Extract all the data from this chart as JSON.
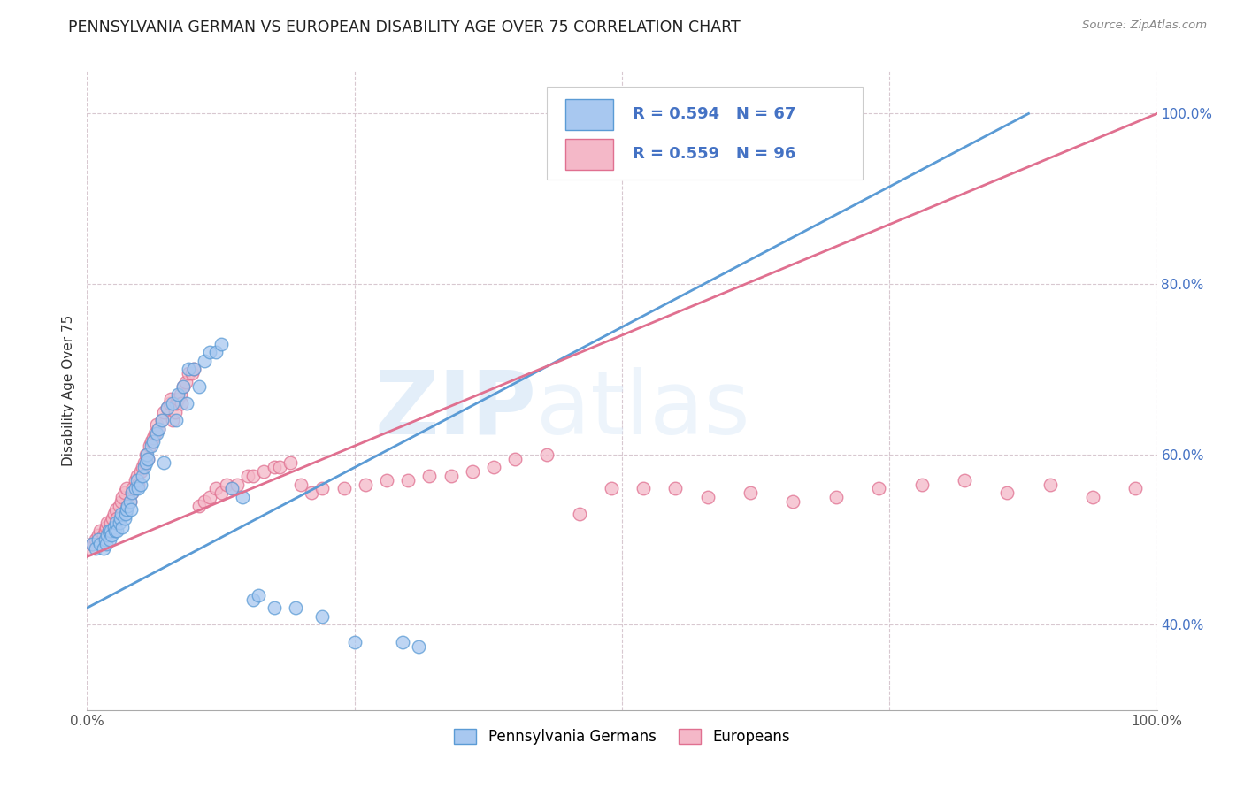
{
  "title": "PENNSYLVANIA GERMAN VS EUROPEAN DISABILITY AGE OVER 75 CORRELATION CHART",
  "source": "Source: ZipAtlas.com",
  "ylabel": "Disability Age Over 75",
  "watermark_zip": "ZIP",
  "watermark_atlas": "atlas",
  "legend_blue_R": "R = 0.594",
  "legend_blue_N": "N = 67",
  "legend_pink_R": "R = 0.559",
  "legend_pink_N": "N = 96",
  "legend_label_blue": "Pennsylvania Germans",
  "legend_label_pink": "Europeans",
  "blue_color": "#a8c8f0",
  "blue_edge": "#5b9bd5",
  "pink_color": "#f4b8c8",
  "pink_edge": "#e07090",
  "trend_blue": "#5b9bd5",
  "trend_pink": "#e07090",
  "blue_scatter_x": [
    0.005,
    0.008,
    0.01,
    0.012,
    0.015,
    0.017,
    0.018,
    0.019,
    0.02,
    0.021,
    0.022,
    0.023,
    0.025,
    0.026,
    0.027,
    0.028,
    0.03,
    0.031,
    0.032,
    0.033,
    0.035,
    0.036,
    0.037,
    0.038,
    0.04,
    0.041,
    0.042,
    0.045,
    0.047,
    0.048,
    0.05,
    0.052,
    0.053,
    0.055,
    0.056,
    0.057,
    0.06,
    0.062,
    0.065,
    0.067,
    0.07,
    0.072,
    0.075,
    0.08,
    0.083,
    0.085,
    0.09,
    0.093,
    0.095,
    0.1,
    0.105,
    0.11,
    0.115,
    0.12,
    0.125,
    0.135,
    0.145,
    0.155,
    0.16,
    0.175,
    0.195,
    0.22,
    0.25,
    0.295,
    0.31,
    0.54,
    0.57
  ],
  "blue_scatter_y": [
    0.495,
    0.49,
    0.5,
    0.495,
    0.49,
    0.5,
    0.495,
    0.505,
    0.51,
    0.5,
    0.51,
    0.505,
    0.515,
    0.51,
    0.52,
    0.51,
    0.52,
    0.525,
    0.53,
    0.515,
    0.525,
    0.53,
    0.535,
    0.54,
    0.545,
    0.535,
    0.555,
    0.56,
    0.57,
    0.56,
    0.565,
    0.575,
    0.585,
    0.59,
    0.6,
    0.595,
    0.61,
    0.615,
    0.625,
    0.63,
    0.64,
    0.59,
    0.655,
    0.66,
    0.64,
    0.67,
    0.68,
    0.66,
    0.7,
    0.7,
    0.68,
    0.71,
    0.72,
    0.72,
    0.73,
    0.56,
    0.55,
    0.43,
    0.435,
    0.42,
    0.42,
    0.41,
    0.38,
    0.38,
    0.375,
    0.99,
    0.99
  ],
  "pink_scatter_x": [
    0.003,
    0.005,
    0.008,
    0.01,
    0.012,
    0.015,
    0.017,
    0.018,
    0.019,
    0.02,
    0.022,
    0.024,
    0.025,
    0.027,
    0.028,
    0.03,
    0.032,
    0.033,
    0.035,
    0.037,
    0.038,
    0.04,
    0.042,
    0.043,
    0.045,
    0.047,
    0.048,
    0.05,
    0.052,
    0.053,
    0.055,
    0.057,
    0.058,
    0.06,
    0.062,
    0.063,
    0.065,
    0.067,
    0.07,
    0.072,
    0.075,
    0.077,
    0.078,
    0.08,
    0.082,
    0.083,
    0.085,
    0.087,
    0.088,
    0.09,
    0.092,
    0.095,
    0.098,
    0.1,
    0.105,
    0.11,
    0.115,
    0.12,
    0.125,
    0.13,
    0.135,
    0.14,
    0.15,
    0.155,
    0.165,
    0.175,
    0.18,
    0.19,
    0.2,
    0.21,
    0.22,
    0.24,
    0.26,
    0.28,
    0.3,
    0.32,
    0.34,
    0.36,
    0.38,
    0.4,
    0.43,
    0.46,
    0.49,
    0.52,
    0.55,
    0.58,
    0.62,
    0.66,
    0.7,
    0.74,
    0.78,
    0.82,
    0.86,
    0.9,
    0.94,
    0.98
  ],
  "pink_scatter_y": [
    0.49,
    0.495,
    0.5,
    0.505,
    0.51,
    0.505,
    0.51,
    0.515,
    0.52,
    0.51,
    0.52,
    0.525,
    0.53,
    0.535,
    0.525,
    0.54,
    0.545,
    0.55,
    0.555,
    0.56,
    0.54,
    0.545,
    0.555,
    0.56,
    0.57,
    0.575,
    0.565,
    0.58,
    0.585,
    0.59,
    0.6,
    0.595,
    0.61,
    0.615,
    0.62,
    0.625,
    0.635,
    0.63,
    0.64,
    0.65,
    0.655,
    0.66,
    0.665,
    0.64,
    0.65,
    0.66,
    0.665,
    0.67,
    0.66,
    0.68,
    0.685,
    0.695,
    0.695,
    0.7,
    0.54,
    0.545,
    0.55,
    0.56,
    0.555,
    0.565,
    0.56,
    0.565,
    0.575,
    0.575,
    0.58,
    0.585,
    0.585,
    0.59,
    0.565,
    0.555,
    0.56,
    0.56,
    0.565,
    0.57,
    0.57,
    0.575,
    0.575,
    0.58,
    0.585,
    0.595,
    0.6,
    0.53,
    0.56,
    0.56,
    0.56,
    0.55,
    0.555,
    0.545,
    0.55,
    0.56,
    0.565,
    0.57,
    0.555,
    0.565,
    0.55,
    0.56
  ],
  "blue_trend_x0": 0.0,
  "blue_trend_y0": 0.42,
  "blue_trend_x1": 0.88,
  "blue_trend_y1": 1.0,
  "pink_trend_x0": 0.0,
  "pink_trend_y0": 0.48,
  "pink_trend_x1": 1.0,
  "pink_trend_y1": 1.0,
  "xlim": [
    0.0,
    1.0
  ],
  "ylim": [
    0.3,
    1.05
  ],
  "ytick_vals": [
    0.4,
    0.6,
    0.8,
    1.0
  ],
  "ytick_labels": [
    "40.0%",
    "60.0%",
    "80.0%",
    "100.0%"
  ],
  "xtick_vals": [
    0.0,
    0.25,
    0.5,
    0.75,
    1.0
  ],
  "xtick_labels": [
    "0.0%",
    "",
    "",
    "",
    "100.0%"
  ]
}
